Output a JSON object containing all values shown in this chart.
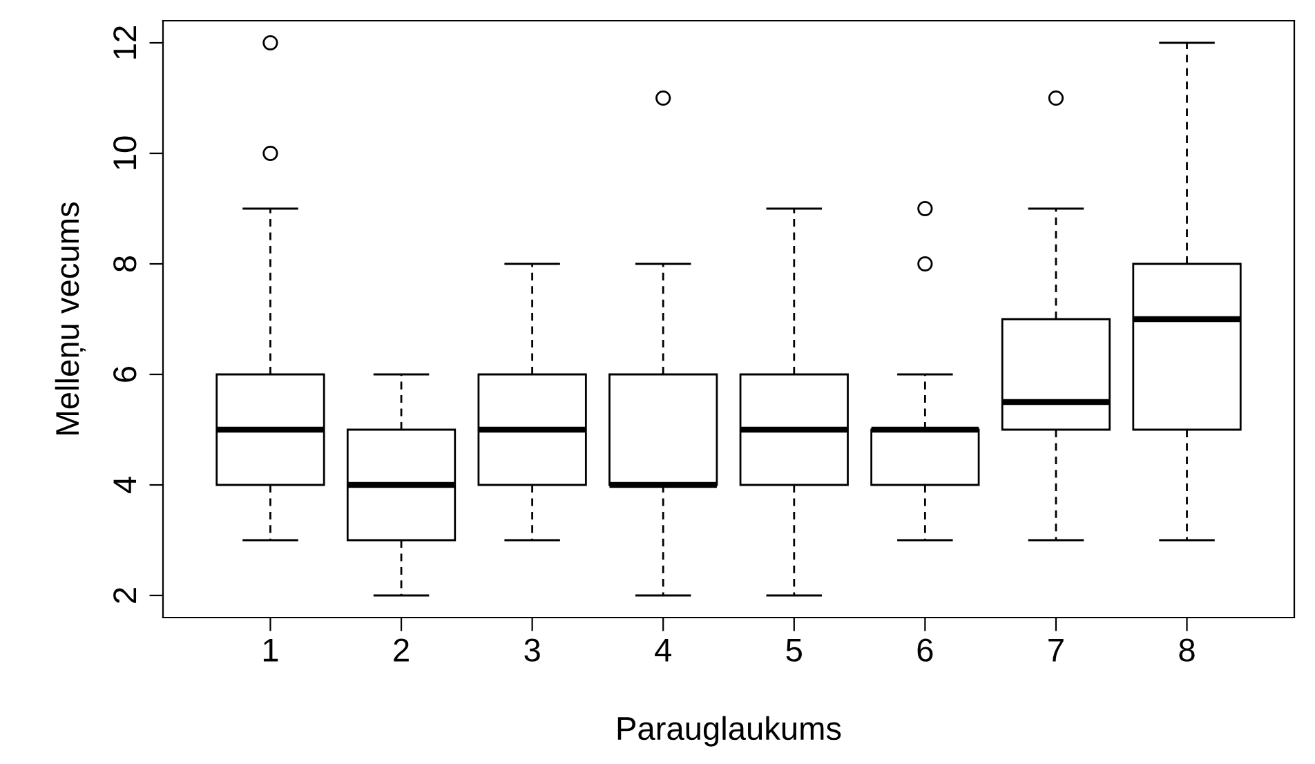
{
  "chart_data": {
    "type": "box",
    "xlabel": "Parauglaukums",
    "ylabel": "Melleņu vecums",
    "categories": [
      "1",
      "2",
      "3",
      "4",
      "5",
      "6",
      "7",
      "8"
    ],
    "boxes": [
      {
        "low": 3,
        "q1": 4,
        "median": 5,
        "q3": 6,
        "high": 9,
        "outliers": [
          10,
          12
        ]
      },
      {
        "low": 2,
        "q1": 3,
        "median": 4,
        "q3": 5,
        "high": 6
      },
      {
        "low": 3,
        "q1": 4,
        "median": 5,
        "q3": 6,
        "high": 8
      },
      {
        "low": 2,
        "q1": 4,
        "median": 4,
        "q3": 6,
        "high": 8,
        "outliers": [
          11
        ]
      },
      {
        "low": 2,
        "q1": 4,
        "median": 5,
        "q3": 6,
        "high": 9
      },
      {
        "low": 3,
        "q1": 4,
        "median": 5,
        "q3": 5,
        "high": 6,
        "outliers": [
          8,
          9
        ]
      },
      {
        "low": 3,
        "q1": 5,
        "median": 5.5,
        "q3": 7,
        "high": 9,
        "outliers": [
          11
        ]
      },
      {
        "low": 3,
        "q1": 5,
        "median": 7,
        "q3": 8,
        "high": 12
      }
    ],
    "color": "#ffffff",
    "ylim": [
      1.6,
      12.4
    ],
    "yticks": [
      2,
      4,
      6,
      8,
      10,
      12
    ],
    "grid": false
  }
}
